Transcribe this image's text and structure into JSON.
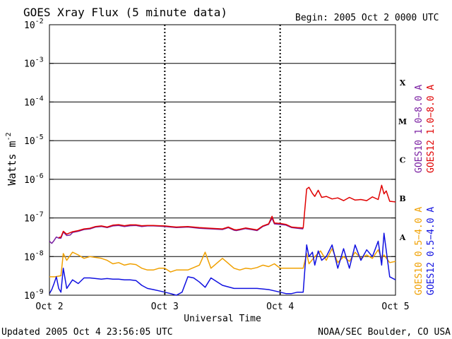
{
  "chart_data": {
    "type": "line",
    "title": "GOES Xray Flux (5 minute data)",
    "begin_text": "Begin:  2005 Oct 2 0000 UTC",
    "xlabel": "Universal Time",
    "ylabel": "Watts m",
    "ylabel_superscript": "-2",
    "y_scale": "log",
    "ylim": [
      1e-09,
      0.01
    ],
    "xlim": [
      0,
      3
    ],
    "y_ticks": [
      {
        "base": "10",
        "exp": "-2",
        "value": 0.01
      },
      {
        "base": "10",
        "exp": "-3",
        "value": 0.001
      },
      {
        "base": "10",
        "exp": "-4",
        "value": 0.0001
      },
      {
        "base": "10",
        "exp": "-5",
        "value": 1e-05
      },
      {
        "base": "10",
        "exp": "-6",
        "value": 1e-06
      },
      {
        "base": "10",
        "exp": "-7",
        "value": 1e-07
      },
      {
        "base": "10",
        "exp": "-8",
        "value": 1e-08
      },
      {
        "base": "10",
        "exp": "-9",
        "value": 1e-09
      }
    ],
    "x_ticks": [
      {
        "label": "Oct 2",
        "value": 0
      },
      {
        "label": "Oct 3",
        "value": 1
      },
      {
        "label": "Oct 4",
        "value": 2
      },
      {
        "label": "Oct 5",
        "value": 3
      }
    ],
    "flare_classes": [
      {
        "label": "X",
        "value": 0.000316
      },
      {
        "label": "M",
        "value": 3.16e-05
      },
      {
        "label": "C",
        "value": 3.16e-06
      },
      {
        "label": "B",
        "value": 3.16e-07
      },
      {
        "label": "A",
        "value": 3.16e-08
      }
    ],
    "grid_y": [
      0.001,
      0.0001,
      1e-05,
      1e-06,
      1e-07,
      1e-08
    ],
    "series": [
      {
        "name": "GOES10 1.0−8.0 A",
        "color": "#7a1fa2",
        "x": [
          0,
          0.02,
          0.04,
          0.06,
          0.08,
          0.1,
          0.12,
          0.15,
          0.18,
          0.2,
          0.25,
          0.3,
          0.35,
          0.4,
          0.45,
          0.5,
          0.55,
          0.6,
          0.65,
          0.7,
          0.75,
          0.8,
          0.85,
          0.9,
          0.95,
          1.0,
          1.05,
          1.1,
          1.2,
          1.3,
          1.4,
          1.5,
          1.55,
          1.6,
          1.62,
          1.65,
          1.7,
          1.75,
          1.8,
          1.85,
          1.9,
          1.93,
          1.95,
          2.0,
          2.05,
          2.1,
          2.15,
          2.2
        ],
        "y": [
          2.5e-08,
          2.2e-08,
          2.6e-08,
          3.2e-08,
          3e-08,
          3e-08,
          4.3e-08,
          3.5e-08,
          3.6e-08,
          4.2e-08,
          4.5e-08,
          5e-08,
          5.2e-08,
          5.8e-08,
          6e-08,
          5.6e-08,
          6.2e-08,
          6.4e-08,
          6e-08,
          6.3e-08,
          6.4e-08,
          6e-08,
          6.2e-08,
          6.2e-08,
          6.1e-08,
          6e-08,
          5.8e-08,
          5.6e-08,
          5.8e-08,
          5.4e-08,
          5.2e-08,
          5e-08,
          5.6e-08,
          4.8e-08,
          4.7e-08,
          4.9e-08,
          5.3e-08,
          5e-08,
          4.7e-08,
          6e-08,
          6.8e-08,
          9.8e-08,
          7e-08,
          6.8e-08,
          6.5e-08,
          5.6e-08,
          5.4e-08,
          5.2e-08
        ]
      },
      {
        "name": "GOES12 1.0−8.0 A",
        "color": "#e00000",
        "x": [
          0.08,
          0.1,
          0.12,
          0.15,
          0.2,
          0.25,
          0.3,
          0.35,
          0.4,
          0.45,
          0.5,
          0.55,
          0.6,
          0.65,
          0.7,
          0.75,
          0.8,
          0.85,
          0.9,
          0.95,
          1.0,
          1.05,
          1.1,
          1.2,
          1.3,
          1.4,
          1.5,
          1.55,
          1.6,
          1.62,
          1.65,
          1.7,
          1.75,
          1.8,
          1.85,
          1.9,
          1.93,
          1.95,
          2.0,
          2.05,
          2.1,
          2.15,
          2.2,
          2.23,
          2.25,
          2.28,
          2.3,
          2.33,
          2.36,
          2.4,
          2.45,
          2.5,
          2.55,
          2.6,
          2.65,
          2.7,
          2.75,
          2.8,
          2.85,
          2.88,
          2.9,
          2.92,
          2.95,
          3.0
        ],
        "y": [
          3.1e-08,
          3.2e-08,
          4.5e-08,
          3.8e-08,
          4.4e-08,
          4.7e-08,
          5.2e-08,
          5.4e-08,
          6e-08,
          6.2e-08,
          5.8e-08,
          6.5e-08,
          6.7e-08,
          6.3e-08,
          6.6e-08,
          6.6e-08,
          6.3e-08,
          6.4e-08,
          6.4e-08,
          6.3e-08,
          6.2e-08,
          6e-08,
          5.8e-08,
          6e-08,
          5.6e-08,
          5.4e-08,
          5.2e-08,
          5.8e-08,
          5e-08,
          4.9e-08,
          5.1e-08,
          5.5e-08,
          5.2e-08,
          4.9e-08,
          6.2e-08,
          7e-08,
          1.1e-07,
          7.4e-08,
          7.2e-08,
          6.8e-08,
          5.8e-08,
          5.6e-08,
          5.5e-08,
          5.6e-07,
          6.2e-07,
          4.3e-07,
          3.6e-07,
          5.2e-07,
          3.4e-07,
          3.6e-07,
          3.1e-07,
          3.3e-07,
          2.8e-07,
          3.4e-07,
          2.9e-07,
          3e-07,
          2.8e-07,
          3.5e-07,
          3e-07,
          7e-07,
          4.2e-07,
          5e-07,
          2.7e-07,
          2.6e-07
        ]
      },
      {
        "name": "GOES10 0.5−4.0 A",
        "color": "#f0a000",
        "x": [
          0,
          0.05,
          0.1,
          0.12,
          0.15,
          0.2,
          0.25,
          0.3,
          0.35,
          0.4,
          0.45,
          0.5,
          0.55,
          0.6,
          0.65,
          0.7,
          0.75,
          0.8,
          0.85,
          0.9,
          0.95,
          1.0,
          1.05,
          1.1,
          1.2,
          1.3,
          1.35,
          1.4,
          1.5,
          1.6,
          1.65,
          1.7,
          1.75,
          1.8,
          1.85,
          1.9,
          1.95,
          2.0,
          2.05,
          2.1,
          2.15,
          2.2,
          2.23,
          2.25,
          2.3,
          2.35,
          2.4,
          2.45,
          2.5,
          2.55,
          2.6,
          2.65,
          2.7,
          2.75,
          2.8,
          2.85,
          2.88,
          2.9,
          2.95,
          3.0
        ],
        "y": [
          3e-09,
          3e-09,
          3.2e-09,
          1.2e-08,
          8e-09,
          1.3e-08,
          1.1e-08,
          9e-09,
          1e-08,
          9.5e-09,
          9e-09,
          8e-09,
          6.5e-09,
          7e-09,
          6e-09,
          6.5e-09,
          6.2e-09,
          5e-09,
          4.5e-09,
          4.5e-09,
          5e-09,
          5e-09,
          4e-09,
          4.5e-09,
          4.5e-09,
          6e-09,
          1.3e-08,
          5e-09,
          9e-09,
          5e-09,
          4.5e-09,
          5e-09,
          4.8e-09,
          5.2e-09,
          6e-09,
          5.5e-09,
          6.5e-09,
          5e-09,
          5e-09,
          5e-09,
          5e-09,
          5e-09,
          1.2e-08,
          6.5e-09,
          1e-08,
          1.4e-08,
          8e-09,
          1.6e-08,
          7e-09,
          1e-08,
          7.5e-09,
          1.3e-08,
          9e-09,
          1.1e-08,
          9e-09,
          1.5e-08,
          9e-09,
          1.1e-08,
          7e-09,
          7.5e-09
        ]
      },
      {
        "name": "GOES12 0.5−4.0 A",
        "color": "#1010e0",
        "x": [
          0,
          0.02,
          0.04,
          0.06,
          0.08,
          0.1,
          0.12,
          0.15,
          0.2,
          0.25,
          0.3,
          0.35,
          0.4,
          0.45,
          0.5,
          0.55,
          0.6,
          0.65,
          0.7,
          0.75,
          0.8,
          0.85,
          0.9,
          0.95,
          1.0,
          1.05,
          1.1,
          1.15,
          1.2,
          1.25,
          1.3,
          1.35,
          1.4,
          1.5,
          1.6,
          1.7,
          1.8,
          1.9,
          2.0,
          2.05,
          2.1,
          2.15,
          2.2,
          2.23,
          2.25,
          2.28,
          2.3,
          2.33,
          2.36,
          2.4,
          2.45,
          2.5,
          2.55,
          2.6,
          2.65,
          2.7,
          2.75,
          2.8,
          2.85,
          2.88,
          2.9,
          2.95,
          3.0
        ],
        "y": [
          1.1e-09,
          1.4e-09,
          2e-09,
          3e-09,
          1.5e-09,
          1.2e-09,
          5e-09,
          1.5e-09,
          2.5e-09,
          2e-09,
          2.8e-09,
          2.8e-09,
          2.7e-09,
          2.6e-09,
          2.7e-09,
          2.6e-09,
          2.6e-09,
          2.5e-09,
          2.5e-09,
          2.4e-09,
          1.8e-09,
          1.5e-09,
          1.4e-09,
          1.3e-09,
          1.2e-09,
          1.1e-09,
          1e-09,
          1.2e-09,
          3e-09,
          2.8e-09,
          2.2e-09,
          1.6e-09,
          2.8e-09,
          1.8e-09,
          1.5e-09,
          1.5e-09,
          1.5e-09,
          1.4e-09,
          1.2e-09,
          1.1e-09,
          1.1e-09,
          1.2e-09,
          1.2e-09,
          2e-08,
          1e-08,
          1.3e-08,
          6e-09,
          1.4e-08,
          8e-09,
          1e-08,
          2e-08,
          5e-09,
          1.6e-08,
          5e-09,
          2e-08,
          8e-09,
          1.5e-08,
          1e-08,
          2.5e-08,
          6e-09,
          4e-08,
          3e-09,
          2.5e-09
        ]
      }
    ]
  },
  "footer": {
    "updated": "Updated 2005 Oct  4 23:56:05 UTC",
    "credit": "NOAA/SEC Boulder, CO USA"
  }
}
